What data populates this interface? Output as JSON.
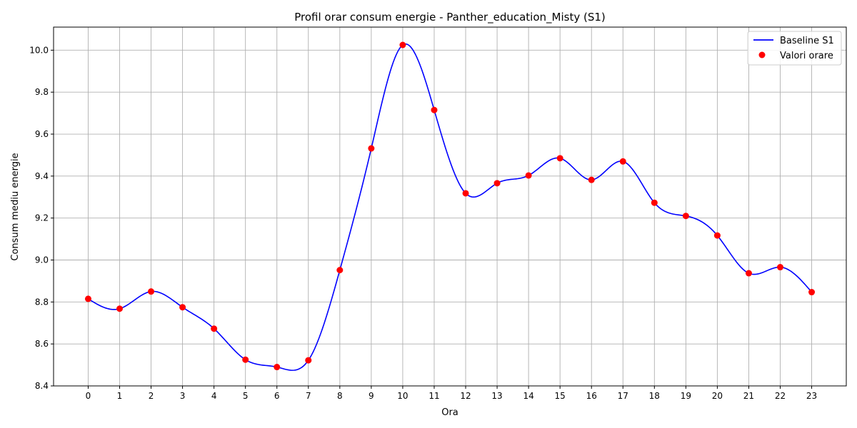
{
  "chart_data": {
    "type": "line",
    "title": "Profil orar consum energie - Panther_education_Misty (S1)",
    "xlabel": "Ora",
    "ylabel": "Consum mediu energie",
    "x": [
      0,
      1,
      2,
      3,
      4,
      5,
      6,
      7,
      8,
      9,
      10,
      11,
      12,
      13,
      14,
      15,
      16,
      17,
      18,
      19,
      20,
      21,
      22,
      23
    ],
    "xlim": [
      -1.1,
      24.1
    ],
    "ylim": [
      8.4,
      10.11
    ],
    "yticks": [
      8.4,
      8.6,
      8.8,
      9.0,
      9.2,
      9.4,
      9.6,
      9.8,
      10.0
    ],
    "ytick_labels": [
      "8.4",
      "8.6",
      "8.8",
      "9.0",
      "9.2",
      "9.4",
      "9.6",
      "9.8",
      "10.0"
    ],
    "grid": true,
    "legend_position": "top-right",
    "series": [
      {
        "name": "Baseline S1",
        "kind": "smooth-line",
        "color": "#0000ff",
        "values": [
          8.815,
          8.768,
          8.85,
          8.775,
          8.673,
          8.525,
          8.49,
          8.522,
          8.952,
          9.532,
          10.025,
          9.715,
          9.318,
          9.366,
          9.403,
          9.485,
          9.382,
          9.47,
          9.273,
          9.21,
          9.117,
          8.937,
          8.966,
          8.847
        ]
      },
      {
        "name": "Valori orare",
        "kind": "scatter",
        "color": "#ff0000",
        "values": [
          8.815,
          8.768,
          8.85,
          8.775,
          8.673,
          8.525,
          8.49,
          8.522,
          8.952,
          9.532,
          10.025,
          9.715,
          9.318,
          9.366,
          9.403,
          9.485,
          9.382,
          9.47,
          9.273,
          9.21,
          9.117,
          8.937,
          8.966,
          8.847
        ]
      }
    ]
  }
}
